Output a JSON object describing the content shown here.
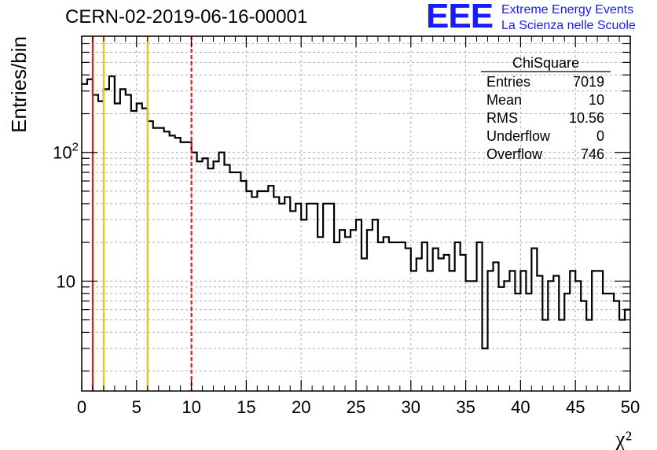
{
  "header": {
    "title": "CERN-02-2019-06-16-00001",
    "logo_mark": "EEE",
    "logo_line1": "Extreme Energy Events",
    "logo_line2": "La Scienza nelle Scuole"
  },
  "colors": {
    "histogram": "#000000",
    "red_line": "#e02020",
    "yellow_line": "#f0c020",
    "grid": "#b0b0b0",
    "logo": "#1a1aff"
  },
  "chart_data": {
    "type": "bar",
    "style": "step-histogram",
    "xlabel": "χ²",
    "ylabel": "Entries/bin",
    "xlim": [
      0,
      50
    ],
    "ylim": [
      1.4,
      800
    ],
    "log_y": true,
    "grid": true,
    "bin_width": 0.5,
    "x_ticks": [
      "0",
      "5",
      "10",
      "15",
      "20",
      "25",
      "30",
      "35",
      "40",
      "45",
      "50"
    ],
    "y_ticks": [
      {
        "value": 10,
        "label": "10"
      },
      {
        "value": 100,
        "label": "10^2"
      }
    ],
    "values": [
      340,
      370,
      280,
      250,
      310,
      390,
      240,
      310,
      280,
      210,
      240,
      220,
      175,
      155,
      155,
      145,
      135,
      130,
      120,
      120,
      100,
      85,
      90,
      75,
      85,
      100,
      80,
      70,
      70,
      60,
      50,
      45,
      50,
      50,
      55,
      45,
      40,
      45,
      35,
      40,
      30,
      40,
      40,
      22,
      40,
      40,
      20,
      25,
      22,
      25,
      30,
      15,
      25,
      30,
      20,
      22,
      20,
      20,
      20,
      18,
      12,
      15,
      20,
      12,
      18,
      15,
      16,
      12,
      20,
      16,
      10,
      10,
      20,
      3,
      12,
      14,
      9,
      10,
      12,
      8,
      12,
      8,
      18,
      11,
      5,
      10,
      11,
      5,
      8,
      12,
      10,
      7,
      5,
      12,
      12,
      8,
      8,
      7,
      5,
      6
    ],
    "vertical_lines": [
      {
        "x": 1,
        "color": "red",
        "style": "solid"
      },
      {
        "x": 2,
        "color": "yellow",
        "style": "solid"
      },
      {
        "x": 6,
        "color": "yellow",
        "style": "solid"
      },
      {
        "x": 10,
        "color": "red",
        "style": "dashed"
      }
    ],
    "stats_box": {
      "title": "ChiSquare",
      "rows": [
        {
          "label": "Entries",
          "value": "7019"
        },
        {
          "label": "Mean",
          "value": "10"
        },
        {
          "label": "RMS",
          "value": "10.56"
        },
        {
          "label": "Underflow",
          "value": "0"
        },
        {
          "label": "Overflow",
          "value": "746"
        }
      ]
    }
  }
}
